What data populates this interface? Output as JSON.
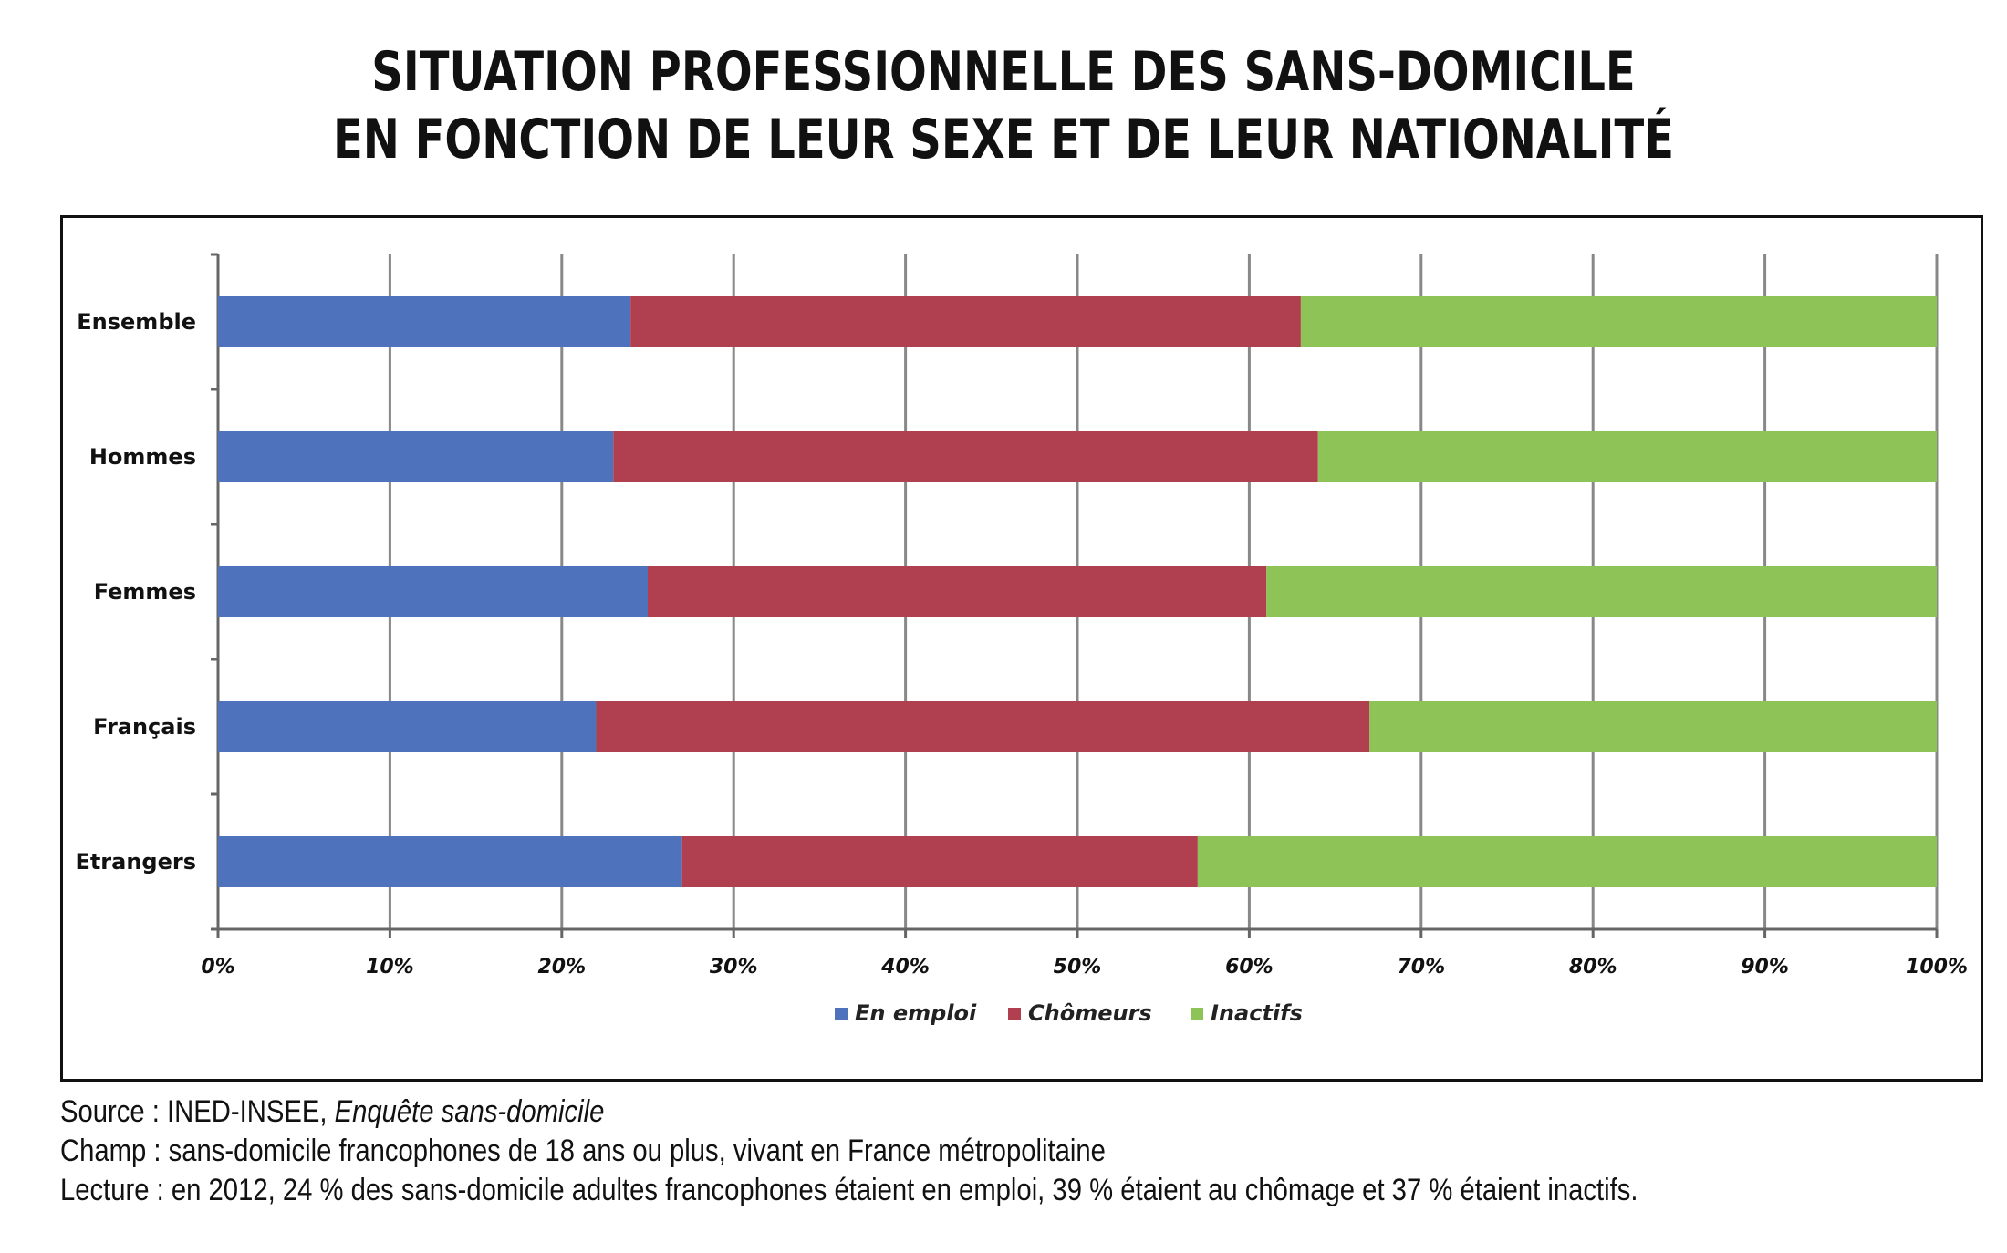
{
  "chart_data": {
    "type": "bar",
    "orientation": "horizontal",
    "stacked": true,
    "percent_stacked": true,
    "title": "SITUATION PROFESSIONNELLE DES SANS-DOMICILE EN FONCTION DE LEUR SEXE ET DE LEUR NATIONALITÉ",
    "title_lines": [
      "SITUATION PROFESSIONNELLE DES SANS-DOMICILE",
      "EN FONCTION DE LEUR SEXE ET DE LEUR NATIONALITÉ"
    ],
    "categories": [
      "Ensemble",
      "Hommes",
      "Femmes",
      "Français",
      "Etrangers"
    ],
    "series": [
      {
        "name": "En emploi",
        "color": "#4f72bd",
        "values": [
          24,
          23,
          25,
          22,
          27
        ]
      },
      {
        "name": "Chômeurs",
        "color": "#b0404f",
        "values": [
          39,
          41,
          36,
          45,
          30
        ]
      },
      {
        "name": "Inactifs",
        "color": "#8dc357",
        "values": [
          37,
          36,
          39,
          33,
          43
        ]
      }
    ],
    "x_ticks": [
      "0%",
      "10%",
      "20%",
      "30%",
      "40%",
      "50%",
      "60%",
      "70%",
      "80%",
      "90%",
      "100%"
    ],
    "xlim": [
      0,
      100
    ],
    "grid": "vertical",
    "legend_position": "bottom"
  },
  "notes": {
    "source_prefix": "Source : INED-INSEE, ",
    "source_italic": "Enquête sans-domicile",
    "champ": "Champ : sans-domicile francophones de 18 ans ou plus, vivant en France métropolitaine",
    "lecture": "Lecture : en 2012, 24 % des sans-domicile adultes francophones étaient en emploi, 39 % étaient au chômage et 37 % étaient inactifs."
  }
}
